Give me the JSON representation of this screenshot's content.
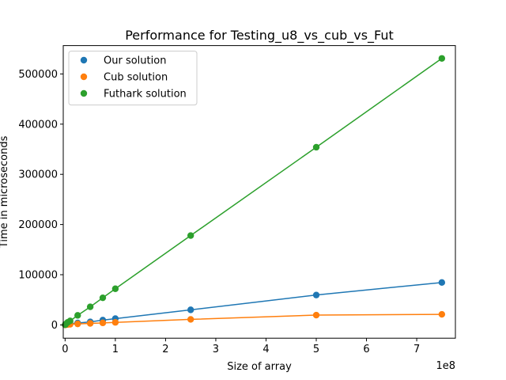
{
  "chart_data": {
    "type": "line",
    "title": "Performance for Testing_u8_vs_cub_vs_Fut",
    "xlabel": "Size of array",
    "ylabel": "Time in microseconds",
    "x_offset_label": "1e8",
    "x_scale_factor": 100000000,
    "xlim": [
      -3700000,
      777000000
    ],
    "ylim": [
      -26500,
      556500
    ],
    "xticks": [
      0,
      100000000,
      200000000,
      300000000,
      400000000,
      500000000,
      600000000,
      700000000
    ],
    "xtick_labels": [
      "0",
      "1",
      "2",
      "3",
      "4",
      "5",
      "6",
      "7"
    ],
    "yticks": [
      0,
      100000,
      200000,
      300000,
      400000,
      500000
    ],
    "ytick_labels": [
      "0",
      "100000",
      "200000",
      "300000",
      "400000",
      "500000"
    ],
    "grid": false,
    "legend_position": "top-left",
    "x": [
      100000,
      500000,
      1000000,
      5000000,
      10000000,
      25000000,
      50000000,
      75000000,
      100000000,
      250000000,
      500000000,
      750000000
    ],
    "series": [
      {
        "name": "Our solution",
        "color": "#1f77b4",
        "values": [
          150,
          600,
          1200,
          2200,
          2500,
          3800,
          6000,
          9500,
          12500,
          30000,
          59500,
          84500
        ]
      },
      {
        "name": "Cub solution",
        "color": "#ff7f0e",
        "values": [
          80,
          200,
          300,
          700,
          1200,
          2000,
          3000,
          4000,
          5000,
          11000,
          19500,
          21000
        ]
      },
      {
        "name": "Futhark solution",
        "color": "#2ca02c",
        "values": [
          300,
          500,
          1500,
          5000,
          8000,
          19000,
          36000,
          54000,
          72000,
          178000,
          354000,
          531000
        ]
      }
    ]
  }
}
